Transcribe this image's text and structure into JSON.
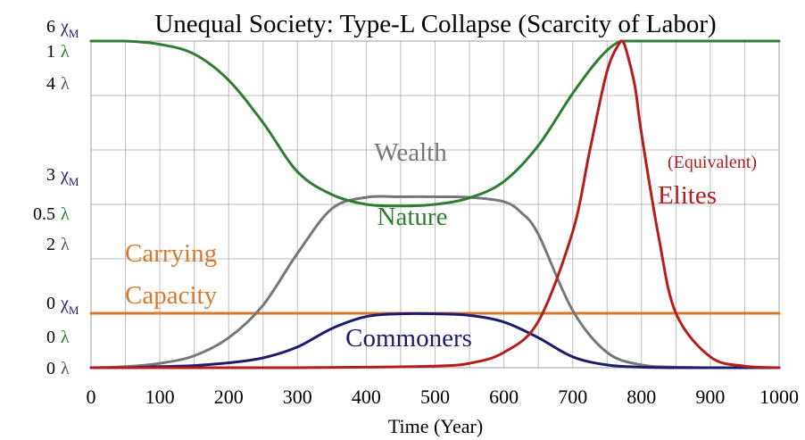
{
  "chart_data": {
    "type": "line",
    "title": "Unequal Society: Type-L Collapse (Scarcity of Labor)",
    "xlabel": "Time (Year)",
    "xlim": [
      0,
      1000
    ],
    "x_ticks": [
      "0",
      "100",
      "200",
      "300",
      "400",
      "500",
      "600",
      "700",
      "800",
      "900",
      "1000"
    ],
    "y_tick_rows": [
      [
        {
          "num": "6",
          "sym": "χ",
          "sub": "M",
          "color": "#1c1c6e"
        }
      ],
      [
        {
          "num": "1",
          "sym": "λ",
          "sub": "",
          "color": "#2e7d32"
        }
      ],
      [
        {
          "num": "4",
          "sym": "λ",
          "sub": "",
          "color": "#555555"
        }
      ],
      [
        {
          "num": "3",
          "sym": "χ",
          "sub": "M",
          "color": "#1c1c6e"
        }
      ],
      [
        {
          "num": "0.5",
          "sym": "λ",
          "sub": "",
          "color": "#2e7d32"
        }
      ],
      [
        {
          "num": "2",
          "sym": "λ",
          "sub": "",
          "color": "#555555"
        }
      ],
      [
        {
          "num": "0",
          "sym": "χ",
          "sub": "M",
          "color": "#1c1c6e"
        }
      ],
      [
        {
          "num": "0",
          "sym": "λ",
          "sub": "",
          "color": "#2e7d32"
        }
      ],
      [
        {
          "num": "0",
          "sym": "λ",
          "sub": "",
          "color": "#555555"
        }
      ]
    ],
    "grid": true,
    "series": [
      {
        "name": "Nature",
        "scale": "λ (0 to 1)",
        "color": "#2e7d32",
        "x": [
          0,
          50,
          100,
          150,
          200,
          250,
          300,
          350,
          400,
          450,
          500,
          550,
          600,
          650,
          700,
          740,
          770,
          800,
          850,
          900,
          950,
          1000
        ],
        "y": [
          1.0,
          1.0,
          0.99,
          0.96,
          0.88,
          0.75,
          0.6,
          0.53,
          0.5,
          0.495,
          0.5,
          0.52,
          0.57,
          0.68,
          0.84,
          0.95,
          1.0,
          1.0,
          1.0,
          1.0,
          1.0,
          1.0
        ]
      },
      {
        "name": "Wealth",
        "scale": "λ (0 to 6)",
        "color": "#777777",
        "x": [
          0,
          50,
          100,
          150,
          200,
          250,
          300,
          350,
          400,
          450,
          500,
          550,
          600,
          625,
          650,
          700,
          750,
          800,
          850,
          900,
          950,
          1000
        ],
        "y": [
          0.0,
          0.02,
          0.08,
          0.22,
          0.55,
          1.15,
          2.1,
          2.92,
          3.13,
          3.14,
          3.14,
          3.13,
          3.05,
          2.85,
          2.45,
          1.05,
          0.28,
          0.05,
          0.01,
          0.0,
          0.0,
          0.0
        ]
      },
      {
        "name": "Commoners",
        "scale": "χM (0 to 6)",
        "color": "#1c1c6e",
        "x": [
          0,
          50,
          100,
          150,
          200,
          250,
          300,
          350,
          400,
          450,
          500,
          550,
          600,
          650,
          700,
          750,
          800,
          850,
          900,
          1000
        ],
        "y": [
          0.0,
          0.0,
          0.02,
          0.04,
          0.09,
          0.18,
          0.38,
          0.72,
          0.94,
          0.99,
          0.99,
          0.96,
          0.84,
          0.55,
          0.2,
          0.05,
          0.01,
          0.0,
          0.0,
          0.0
        ]
      },
      {
        "name": "(Equivalent) Elites",
        "scale": "χM (0 to 6)",
        "color": "#b71c1c",
        "x": [
          0,
          100,
          200,
          300,
          400,
          500,
          550,
          600,
          650,
          700,
          725,
          750,
          770,
          775,
          790,
          800,
          825,
          850,
          900,
          950,
          1000
        ],
        "y": [
          0.0,
          0.0,
          0.0,
          0.0,
          0.01,
          0.03,
          0.08,
          0.28,
          0.85,
          2.5,
          4.0,
          5.45,
          6.0,
          5.95,
          5.2,
          4.3,
          2.4,
          1.0,
          0.2,
          0.03,
          0.0
        ]
      },
      {
        "name": "Carrying Capacity",
        "scale": "χM (0 to 6)",
        "color": "#d9782d",
        "x": [
          0,
          1000
        ],
        "y": [
          1.0,
          1.0
        ]
      }
    ],
    "labels": {
      "nature": "Nature",
      "wealth": "Wealth",
      "commoners": "Commoners",
      "elites_prefix": "(Equivalent)",
      "elites": "Elites",
      "carrying_line1": "Carrying",
      "carrying_line2": "Capacity"
    },
    "colors": {
      "nature": "#2e7d32",
      "wealth": "#777777",
      "commoners": "#1c1c6e",
      "elites": "#b71c1c",
      "carrying": "#d9782d"
    }
  }
}
